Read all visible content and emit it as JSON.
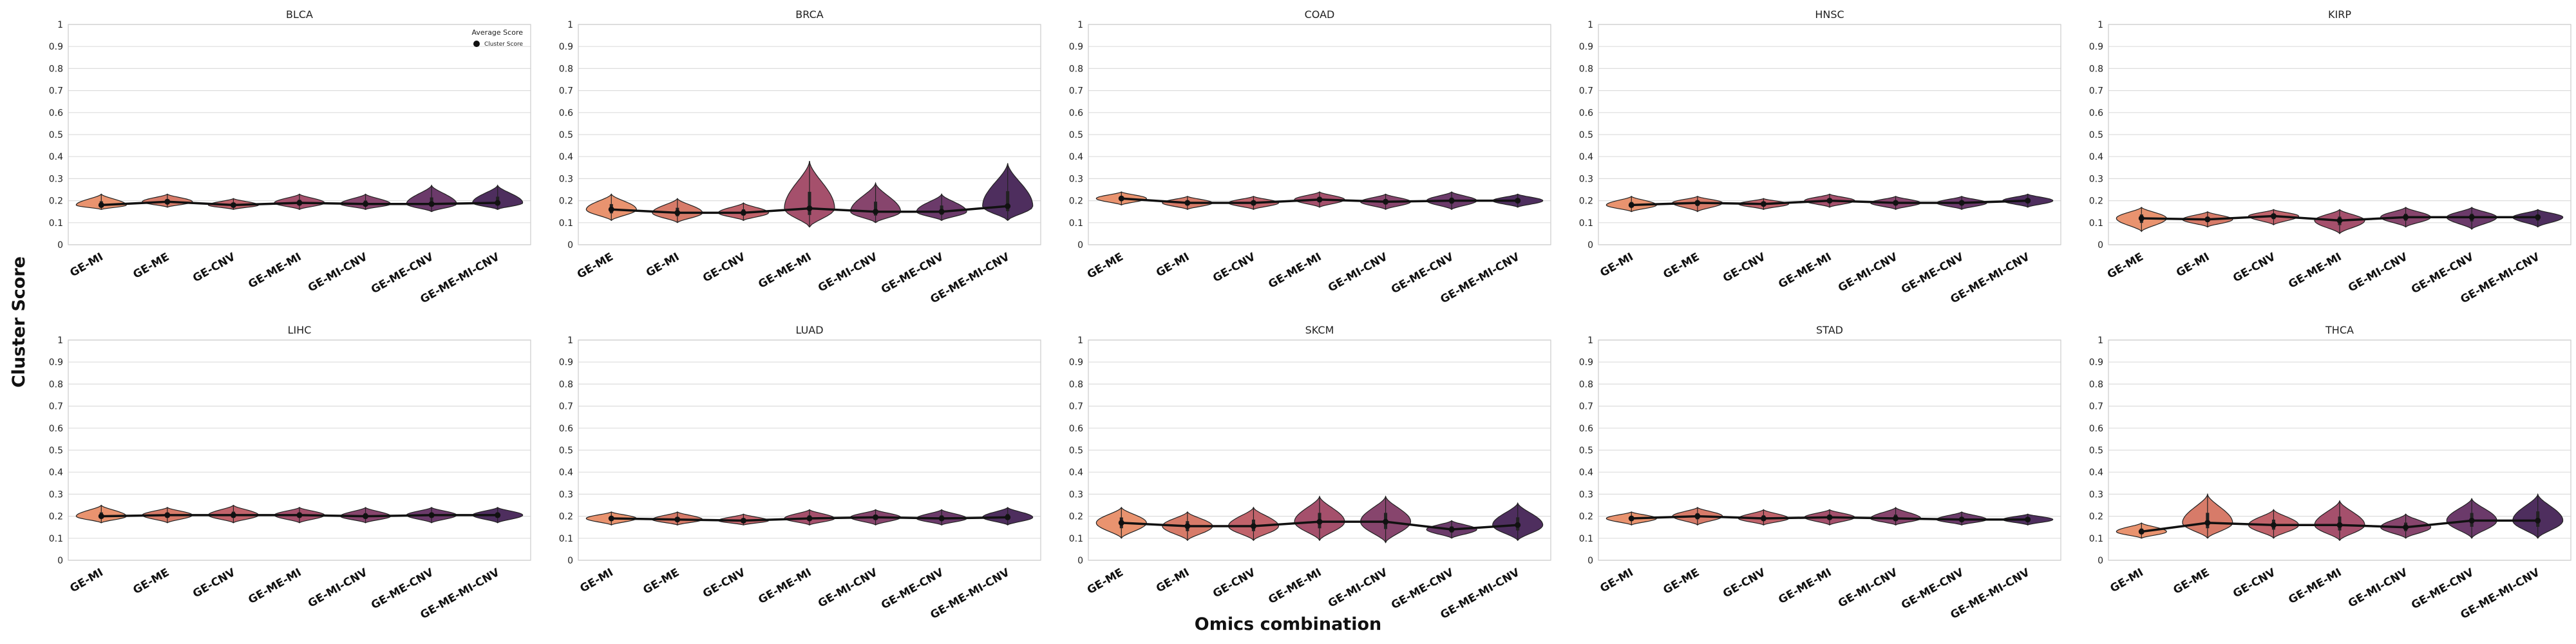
{
  "figure": {
    "ylabel": "Cluster Score",
    "xlabel": "Omics combination"
  },
  "legend": {
    "title": "Average Score",
    "entry": "Cluster Score"
  },
  "colors": {
    "violins": [
      "#e9936f",
      "#d77b69",
      "#c1636b",
      "#a5506c",
      "#87456d",
      "#6b3a6a",
      "#4e2e5e"
    ],
    "line": "#111111",
    "grid": "#dddddd",
    "spine": "#cccccc"
  },
  "chart_data": [
    {
      "type": "violin",
      "title": "BLCA",
      "ylim": [
        0,
        1
      ],
      "yticks": [
        "0",
        "0.1",
        "0.2",
        "0.3",
        "0.4",
        "0.5",
        "0.6",
        "0.7",
        "0.8",
        "0.9",
        "1"
      ],
      "categories": [
        "GE-MI",
        "GE-ME",
        "GE-CNV",
        "GE-ME-MI",
        "GE-MI-CNV",
        "GE-ME-CNV",
        "GE-ME-MI-CNV"
      ],
      "values": [
        0.18,
        0.195,
        0.18,
        0.19,
        0.185,
        0.185,
        0.19
      ],
      "ranges": [
        [
          0.16,
          0.23
        ],
        [
          0.17,
          0.23
        ],
        [
          0.16,
          0.21
        ],
        [
          0.16,
          0.23
        ],
        [
          0.16,
          0.23
        ],
        [
          0.15,
          0.27
        ],
        [
          0.16,
          0.27
        ]
      ],
      "show_legend": true
    },
    {
      "type": "violin",
      "title": "BRCA",
      "ylim": [
        0,
        1
      ],
      "yticks": [
        "0",
        "0.1",
        "0.2",
        "0.3",
        "0.4",
        "0.5",
        "0.6",
        "0.7",
        "0.8",
        "0.9",
        "1"
      ],
      "categories": [
        "GE-ME",
        "GE-MI",
        "GE-CNV",
        "GE-ME-MI",
        "GE-MI-CNV",
        "GE-ME-CNV",
        "GE-ME-MI-CNV"
      ],
      "values": [
        0.16,
        0.145,
        0.145,
        0.165,
        0.15,
        0.15,
        0.175
      ],
      "ranges": [
        [
          0.11,
          0.23
        ],
        [
          0.1,
          0.21
        ],
        [
          0.11,
          0.19
        ],
        [
          0.08,
          0.38
        ],
        [
          0.1,
          0.28
        ],
        [
          0.11,
          0.23
        ],
        [
          0.11,
          0.37
        ]
      ]
    },
    {
      "type": "violin",
      "title": "COAD",
      "ylim": [
        0,
        1
      ],
      "yticks": [
        "0",
        "0.1",
        "0.2",
        "0.3",
        "0.4",
        "0.5",
        "0.6",
        "0.7",
        "0.8",
        "0.9",
        "1"
      ],
      "categories": [
        "GE-ME",
        "GE-MI",
        "GE-CNV",
        "GE-ME-MI",
        "GE-MI-CNV",
        "GE-ME-CNV",
        "GE-ME-MI-CNV"
      ],
      "values": [
        0.21,
        0.19,
        0.19,
        0.205,
        0.195,
        0.2,
        0.2
      ],
      "ranges": [
        [
          0.18,
          0.24
        ],
        [
          0.16,
          0.22
        ],
        [
          0.16,
          0.22
        ],
        [
          0.17,
          0.24
        ],
        [
          0.16,
          0.23
        ],
        [
          0.16,
          0.24
        ],
        [
          0.17,
          0.23
        ]
      ]
    },
    {
      "type": "violin",
      "title": "HNSC",
      "ylim": [
        0,
        1
      ],
      "yticks": [
        "0",
        "0.1",
        "0.2",
        "0.3",
        "0.4",
        "0.5",
        "0.6",
        "0.7",
        "0.8",
        "0.9",
        "1"
      ],
      "categories": [
        "GE-MI",
        "GE-ME",
        "GE-CNV",
        "GE-ME-MI",
        "GE-MI-CNV",
        "GE-ME-CNV",
        "GE-ME-MI-CNV"
      ],
      "values": [
        0.18,
        0.19,
        0.185,
        0.2,
        0.19,
        0.19,
        0.2
      ],
      "ranges": [
        [
          0.15,
          0.22
        ],
        [
          0.15,
          0.22
        ],
        [
          0.16,
          0.21
        ],
        [
          0.17,
          0.23
        ],
        [
          0.16,
          0.22
        ],
        [
          0.16,
          0.22
        ],
        [
          0.17,
          0.23
        ]
      ]
    },
    {
      "type": "violin",
      "title": "KIRP",
      "ylim": [
        0,
        1
      ],
      "yticks": [
        "0",
        "0.1",
        "0.2",
        "0.3",
        "0.4",
        "0.5",
        "0.6",
        "0.7",
        "0.8",
        "0.9",
        "1"
      ],
      "categories": [
        "GE-ME",
        "GE-MI",
        "GE-CNV",
        "GE-ME-MI",
        "GE-MI-CNV",
        "GE-ME-CNV",
        "GE-ME-MI-CNV"
      ],
      "values": [
        0.12,
        0.115,
        0.13,
        0.11,
        0.125,
        0.125,
        0.125
      ],
      "ranges": [
        [
          0.06,
          0.17
        ],
        [
          0.08,
          0.15
        ],
        [
          0.09,
          0.16
        ],
        [
          0.05,
          0.16
        ],
        [
          0.08,
          0.17
        ],
        [
          0.07,
          0.17
        ],
        [
          0.08,
          0.16
        ]
      ]
    },
    {
      "type": "violin",
      "title": "LIHC",
      "ylim": [
        0,
        1
      ],
      "yticks": [
        "0",
        "0.1",
        "0.2",
        "0.3",
        "0.4",
        "0.5",
        "0.6",
        "0.7",
        "0.8",
        "0.9",
        "1"
      ],
      "categories": [
        "GE-MI",
        "GE-ME",
        "GE-CNV",
        "GE-ME-MI",
        "GE-MI-CNV",
        "GE-ME-CNV",
        "GE-ME-MI-CNV"
      ],
      "values": [
        0.2,
        0.205,
        0.205,
        0.205,
        0.2,
        0.205,
        0.205
      ],
      "ranges": [
        [
          0.17,
          0.25
        ],
        [
          0.17,
          0.24
        ],
        [
          0.17,
          0.25
        ],
        [
          0.17,
          0.24
        ],
        [
          0.17,
          0.24
        ],
        [
          0.17,
          0.24
        ],
        [
          0.17,
          0.24
        ]
      ]
    },
    {
      "type": "violin",
      "title": "LUAD",
      "ylim": [
        0,
        1
      ],
      "yticks": [
        "0",
        "0.1",
        "0.2",
        "0.3",
        "0.4",
        "0.5",
        "0.6",
        "0.7",
        "0.8",
        "0.9",
        "1"
      ],
      "categories": [
        "GE-MI",
        "GE-ME",
        "GE-CNV",
        "GE-ME-MI",
        "GE-MI-CNV",
        "GE-ME-CNV",
        "GE-ME-MI-CNV"
      ],
      "values": [
        0.19,
        0.185,
        0.18,
        0.19,
        0.195,
        0.19,
        0.195
      ],
      "ranges": [
        [
          0.16,
          0.22
        ],
        [
          0.16,
          0.22
        ],
        [
          0.16,
          0.21
        ],
        [
          0.16,
          0.23
        ],
        [
          0.16,
          0.23
        ],
        [
          0.16,
          0.23
        ],
        [
          0.16,
          0.24
        ]
      ]
    },
    {
      "type": "violin",
      "title": "SKCM",
      "ylim": [
        0,
        1
      ],
      "yticks": [
        "0",
        "0.1",
        "0.2",
        "0.3",
        "0.4",
        "0.5",
        "0.6",
        "0.7",
        "0.8",
        "0.9",
        "1"
      ],
      "categories": [
        "GE-ME",
        "GE-MI",
        "GE-CNV",
        "GE-ME-MI",
        "GE-MI-CNV",
        "GE-ME-CNV",
        "GE-ME-MI-CNV"
      ],
      "values": [
        0.17,
        0.155,
        0.155,
        0.175,
        0.175,
        0.14,
        0.16
      ],
      "ranges": [
        [
          0.1,
          0.24
        ],
        [
          0.09,
          0.22
        ],
        [
          0.09,
          0.24
        ],
        [
          0.09,
          0.29
        ],
        [
          0.08,
          0.29
        ],
        [
          0.1,
          0.18
        ],
        [
          0.09,
          0.26
        ]
      ]
    },
    {
      "type": "violin",
      "title": "STAD",
      "ylim": [
        0,
        1
      ],
      "yticks": [
        "0",
        "0.1",
        "0.2",
        "0.3",
        "0.4",
        "0.5",
        "0.6",
        "0.7",
        "0.8",
        "0.9",
        "1"
      ],
      "categories": [
        "GE-MI",
        "GE-ME",
        "GE-CNV",
        "GE-ME-MI",
        "GE-MI-CNV",
        "GE-ME-CNV",
        "GE-ME-MI-CNV"
      ],
      "values": [
        0.19,
        0.2,
        0.19,
        0.195,
        0.19,
        0.185,
        0.185
      ],
      "ranges": [
        [
          0.16,
          0.22
        ],
        [
          0.16,
          0.24
        ],
        [
          0.16,
          0.23
        ],
        [
          0.16,
          0.23
        ],
        [
          0.16,
          0.24
        ],
        [
          0.16,
          0.22
        ],
        [
          0.16,
          0.21
        ]
      ]
    },
    {
      "type": "violin",
      "title": "THCA",
      "ylim": [
        0,
        1
      ],
      "yticks": [
        "0",
        "0.1",
        "0.2",
        "0.3",
        "0.4",
        "0.5",
        "0.6",
        "0.7",
        "0.8",
        "0.9",
        "1"
      ],
      "categories": [
        "GE-MI",
        "GE-ME",
        "GE-CNV",
        "GE-ME-MI",
        "GE-MI-CNV",
        "GE-ME-CNV",
        "GE-ME-MI-CNV"
      ],
      "values": [
        0.13,
        0.17,
        0.16,
        0.16,
        0.15,
        0.18,
        0.18
      ],
      "ranges": [
        [
          0.1,
          0.17
        ],
        [
          0.1,
          0.3
        ],
        [
          0.1,
          0.23
        ],
        [
          0.09,
          0.27
        ],
        [
          0.1,
          0.21
        ],
        [
          0.1,
          0.28
        ],
        [
          0.1,
          0.3
        ]
      ]
    }
  ]
}
